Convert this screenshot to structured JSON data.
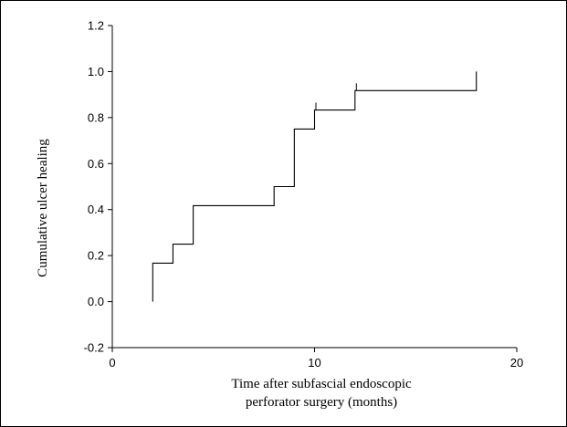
{
  "chart_data": {
    "type": "line",
    "step": true,
    "title": "",
    "xlabel_lines": [
      "Time after subfascial endoscopic",
      "perforator surgery (months)"
    ],
    "ylabel": "Cumulative ulcer healing",
    "xlim": [
      0,
      20
    ],
    "ylim": [
      -0.2,
      1.2
    ],
    "x_ticks": [
      0,
      10,
      20
    ],
    "y_ticks": [
      -0.2,
      0.0,
      0.2,
      0.4,
      0.6,
      0.8,
      1.0,
      1.2
    ],
    "x_tick_labels": [
      "0",
      "10",
      "20"
    ],
    "y_tick_labels": [
      "-0.2",
      "0.0",
      "0.2",
      "0.4",
      "0.6",
      "0.8",
      "1.0",
      "1.2"
    ],
    "grid": false,
    "legend": "none",
    "series": [
      {
        "x": [
          2,
          3,
          4,
          8,
          9,
          10,
          12,
          18
        ],
        "y": [
          0.167,
          0.25,
          0.417,
          0.5,
          0.75,
          0.833,
          0.917,
          1.0
        ],
        "start_y": 0.0,
        "censor_marks": [
          {
            "x": 10,
            "y": 0.833
          },
          {
            "x": 12,
            "y": 0.917
          }
        ]
      }
    ]
  }
}
